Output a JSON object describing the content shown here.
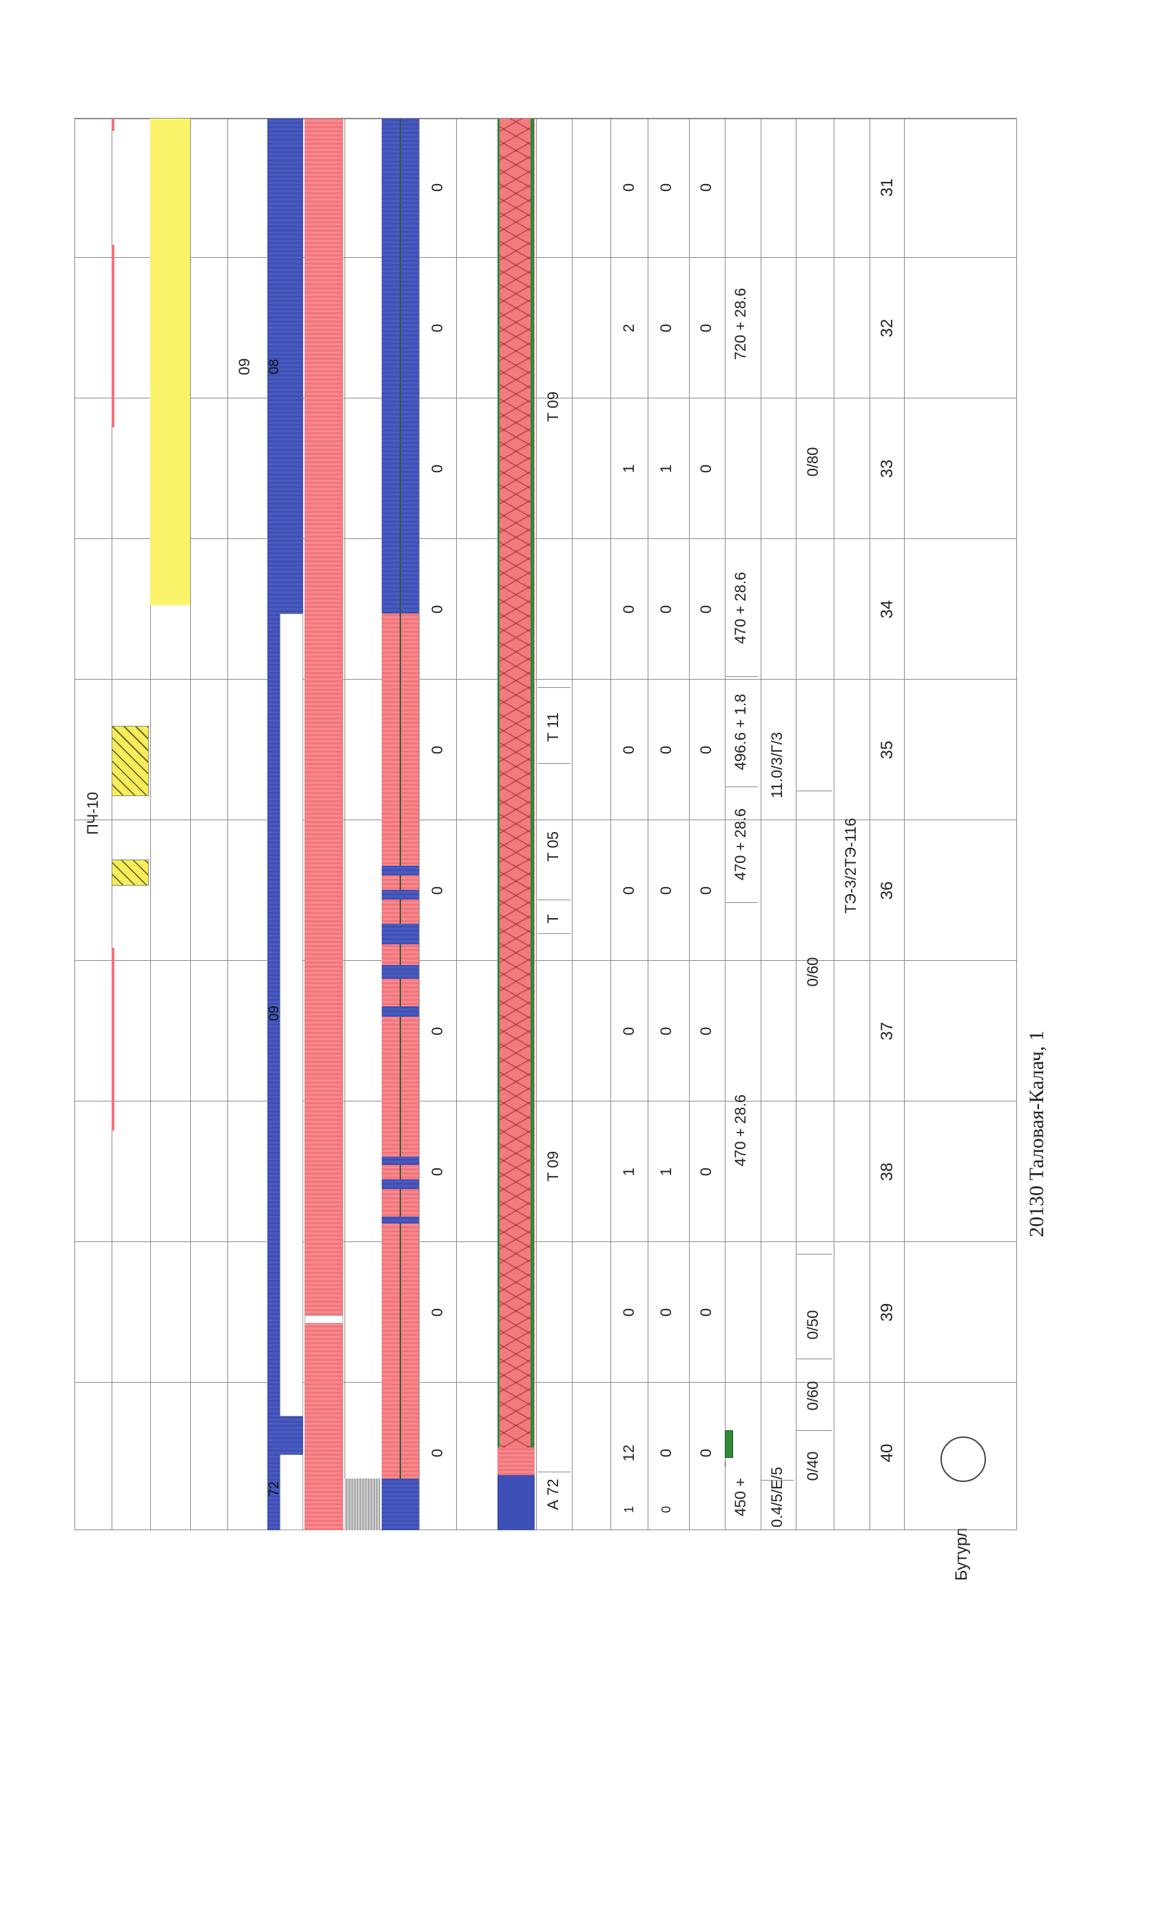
{
  "title": "20130 Таловая-Калач, 1",
  "station_label": "Бутурл",
  "columns": [
    "31",
    "32",
    "33",
    "34",
    "35",
    "36",
    "37",
    "38",
    "39",
    "40"
  ],
  "rows": {
    "code_main": "ТЭ-3/2ТЭ-116",
    "speed": {
      "a": "0/80",
      "b": "0/60",
      "c": "0/50",
      "d": "0/60",
      "e": "0/40"
    },
    "line_params": {
      "a": "11.0/3/Г/3",
      "b": "0.4/5/Е/5"
    },
    "sections": {
      "s1": "720 + 28.6",
      "s2": "470 + 28.6",
      "s3": "496.6 + 1.8",
      "s4": "470 + 28.6",
      "s5": "470 + 28.6",
      "s6": "450 +"
    },
    "row_a": [
      "0",
      "0",
      "0",
      "0",
      "0",
      "0",
      "0",
      "0",
      "0",
      "0"
    ],
    "row_b": [
      "0",
      "0",
      "1",
      "0",
      "0",
      "0",
      "0",
      "1",
      "0",
      "0"
    ],
    "row_c": [
      "0",
      "2",
      "1",
      "0",
      "0",
      "0",
      "0",
      "1",
      "0",
      "12"
    ],
    "row_d": [
      "0",
      "0",
      "0",
      "0",
      "0",
      "0",
      "0",
      "0",
      "0",
      "0"
    ],
    "clip_b": "0",
    "clip_c": "1",
    "track_labels": {
      "t1": "Т 09",
      "t2": "Т 11",
      "t3": "Т 05",
      "t4": "Т",
      "t5": "Т 09",
      "t6": "А 72"
    },
    "blue_labels": {
      "b1": "08",
      "b2": "09",
      "b3": "09",
      "b4": "72"
    },
    "bottom_label": "ПЧ-10"
  },
  "colors": {
    "blue": "#3e4fb5",
    "red": "#f3747a",
    "yellow": "#fbf46b",
    "green": "#2f8a3a",
    "grey": "#b3b3b3",
    "grid": "#8a8a8a"
  }
}
